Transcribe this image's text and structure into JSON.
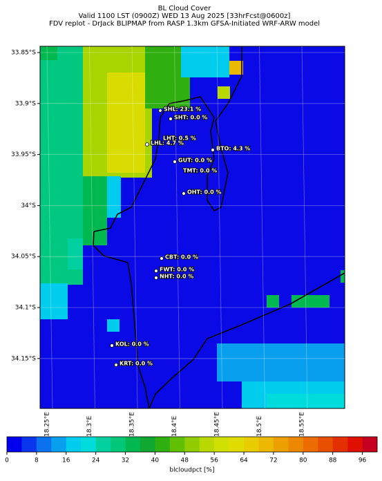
{
  "title": [
    "BL Cloud Cover",
    "Valid 1100 LST (0900Z) WED 13 Aug 2025 [33hrFcst@0600z]",
    "FDV replot - DrJack BLIPMAP from RASP 1.3km GFSA-Initiated WRF-ARW model"
  ],
  "map": {
    "lat_ticks": [
      {
        "value": 33.85,
        "label": "33.85°S"
      },
      {
        "value": 33.9,
        "label": "33.9°S"
      },
      {
        "value": 33.95,
        "label": "33.95°S"
      },
      {
        "value": 34.0,
        "label": "34°S"
      },
      {
        "value": 34.05,
        "label": "34.05°S"
      },
      {
        "value": 34.1,
        "label": "34.1°S"
      },
      {
        "value": 34.15,
        "label": "34.15°S"
      }
    ],
    "lon_ticks": [
      {
        "value": 18.25,
        "label": "18.25°E"
      },
      {
        "value": 18.3,
        "label": "18.3°E"
      },
      {
        "value": 18.35,
        "label": "18.35°E"
      },
      {
        "value": 18.4,
        "label": "18.4°E"
      },
      {
        "value": 18.45,
        "label": "18.45°E"
      },
      {
        "value": 18.5,
        "label": "18.5°E"
      },
      {
        "value": 18.55,
        "label": "18.55°E"
      }
    ],
    "stations": [
      "SHL: 23.1 %",
      "SHT: 0.0 %",
      "LHT: 0.5 %",
      "LHL: 4.7 %",
      "BTO: 4.3 %",
      "GUT: 0.0 %",
      "TMT: 0.0 %",
      "OHT: 0.0 %",
      "CBT: 0.0 %",
      "FWT: 0.0 %",
      "NHT: 0.0 %",
      "KOL: 0.0 %",
      "KRT: 0.0 %"
    ]
  },
  "colorbar": {
    "lim": [
      0,
      100
    ],
    "ticks": [
      0,
      8,
      16,
      24,
      32,
      40,
      48,
      56,
      64,
      72,
      80,
      88,
      96
    ],
    "colors": [
      "#0000ee",
      "#0a36ee",
      "#0a72ef",
      "#08a0ee",
      "#00ccee",
      "#00dcdc",
      "#00d0a0",
      "#00c878",
      "#00b850",
      "#10a830",
      "#30b010",
      "#60c000",
      "#90cc00",
      "#b8d800",
      "#d0e000",
      "#e0dc00",
      "#e8cc00",
      "#ecb800",
      "#eca000",
      "#ec8800",
      "#ec6c00",
      "#e85000",
      "#e43000",
      "#e01000",
      "#c80020"
    ],
    "label": "blcloudpct [%]"
  }
}
